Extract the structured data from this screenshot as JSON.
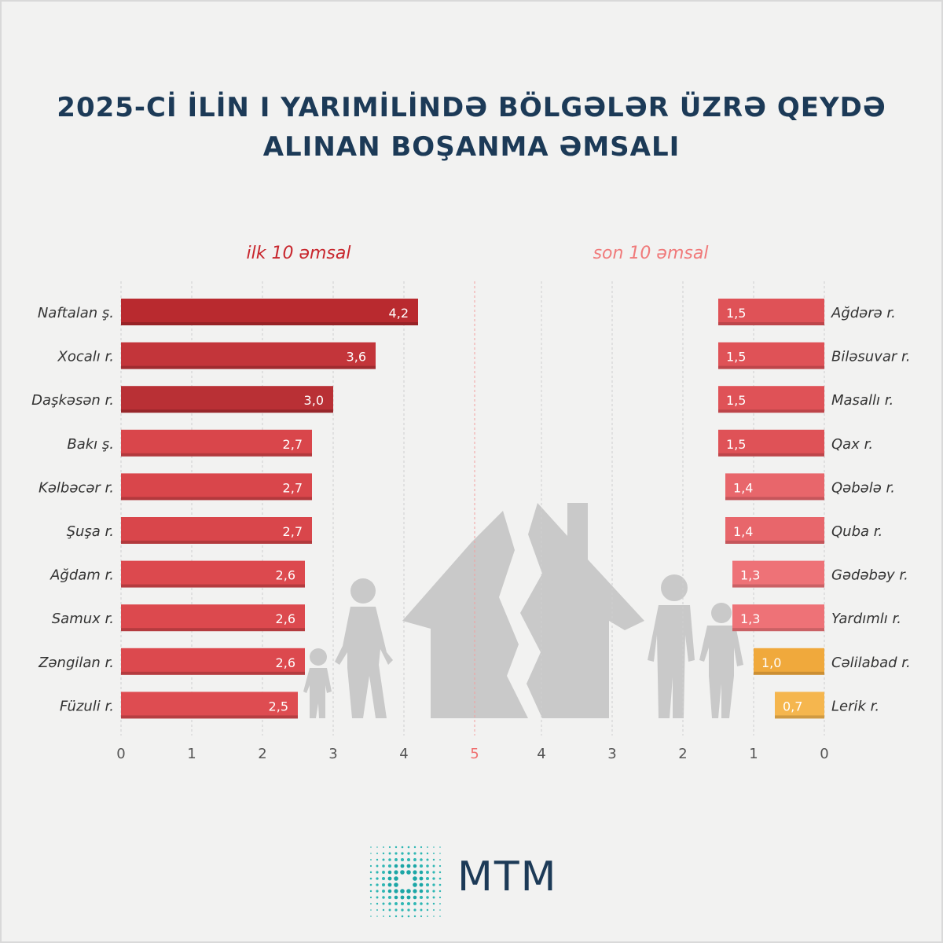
{
  "title_lines": [
    "2025-Cİ İLİN I YARIMİLİNDƏ BÖLGƏLƏR ÜZRƏ QEYDƏ",
    "ALINAN BOŞANMA ƏMSALI"
  ],
  "chart_data": [
    {
      "type": "bar",
      "orientation": "horizontal",
      "title": "ilk 10 əmsal",
      "categories": [
        "Naftalan ş.",
        "Xocalı r.",
        "Daşkəsən r.",
        "Bakı ş.",
        "Kəlbəcər r.",
        "Şuşa r.",
        "Ağdam r.",
        "Samux r.",
        "Zəngilan r.",
        "Füzuli r."
      ],
      "values": [
        4.2,
        3.6,
        3.0,
        2.7,
        2.7,
        2.7,
        2.6,
        2.6,
        2.6,
        2.5
      ],
      "value_labels": [
        "4,2",
        "3,6",
        "3,0",
        "2,7",
        "2,7",
        "2,7",
        "2,6",
        "2,6",
        "2,6",
        "2,5"
      ],
      "xlim": [
        0,
        5
      ],
      "ticks": [
        "0",
        "1",
        "2",
        "3",
        "4"
      ],
      "direction": "left-to-right",
      "grid": true,
      "colors": [
        "#b92a2f",
        "#c3353a",
        "#b93035",
        "#d9464b",
        "#d9464b",
        "#d9464b",
        "#dc494e",
        "#dc494e",
        "#dc494e",
        "#de4c51"
      ]
    },
    {
      "type": "bar",
      "orientation": "horizontal",
      "title": "son 10 əmsal",
      "categories": [
        "Ağdərə r.",
        "Biləsuvar r.",
        "Masallı r.",
        "Qax r.",
        "Qəbələ r.",
        "Quba r.",
        "Gədəbəy r.",
        "Yardımlı r.",
        "Cəlilabad r.",
        "Lerik r."
      ],
      "values": [
        1.5,
        1.5,
        1.5,
        1.5,
        1.4,
        1.4,
        1.3,
        1.3,
        1.0,
        0.7
      ],
      "value_labels": [
        "1,5",
        "1,5",
        "1,5",
        "1,5",
        "1,4",
        "1,4",
        "1,3",
        "1,3",
        "1,0",
        "0,7"
      ],
      "xlim": [
        0,
        5
      ],
      "ticks": [
        "4",
        "3",
        "2",
        "1",
        "0"
      ],
      "direction": "right-to-left",
      "grid": true,
      "colors": [
        "#df5257",
        "#df5257",
        "#df5257",
        "#df5257",
        "#e8666b",
        "#e8666b",
        "#ee7277",
        "#ee7277",
        "#f0a93c",
        "#f5b64e"
      ]
    }
  ],
  "shared_tick": "5",
  "logo_text": "MTM",
  "colors": {
    "title": "#1c3a57",
    "left_section": "#c8262d",
    "right_section": "#f07a7a",
    "tick": "#555555",
    "shared_tick": "#f06e6e",
    "silhouette": "#c9c9c9"
  }
}
